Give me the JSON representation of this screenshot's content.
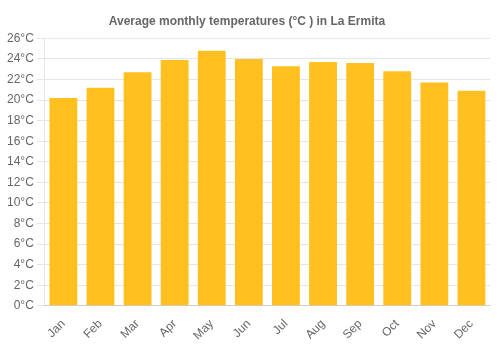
{
  "chart_data": {
    "type": "bar",
    "title": "Average monthly temperatures (°C ) in La Ermita",
    "categories": [
      "Jan",
      "Feb",
      "Mar",
      "Apr",
      "May",
      "Jun",
      "Jul",
      "Aug",
      "Sep",
      "Oct",
      "Nov",
      "Dec"
    ],
    "values": [
      20.2,
      21.2,
      22.7,
      23.9,
      24.8,
      24.0,
      23.3,
      23.7,
      23.6,
      22.8,
      21.7,
      20.9
    ],
    "color": "#FFC020",
    "ylim": [
      0,
      26
    ],
    "yticks": [
      {
        "value": 0,
        "label": "0°C"
      },
      {
        "value": 2,
        "label": "2°C"
      },
      {
        "value": 4,
        "label": "4°C"
      },
      {
        "value": 6,
        "label": "6°C"
      },
      {
        "value": 8,
        "label": "8°C"
      },
      {
        "value": 10,
        "label": "10°C"
      },
      {
        "value": 12,
        "label": "12°C"
      },
      {
        "value": 14,
        "label": "14°C"
      },
      {
        "value": 16,
        "label": "16°C"
      },
      {
        "value": 18,
        "label": "18°C"
      },
      {
        "value": 20,
        "label": "20°C"
      },
      {
        "value": 22,
        "label": "22°C"
      },
      {
        "value": 24,
        "label": "24°C"
      },
      {
        "value": 26,
        "label": "26°C"
      }
    ],
    "grid": true
  }
}
